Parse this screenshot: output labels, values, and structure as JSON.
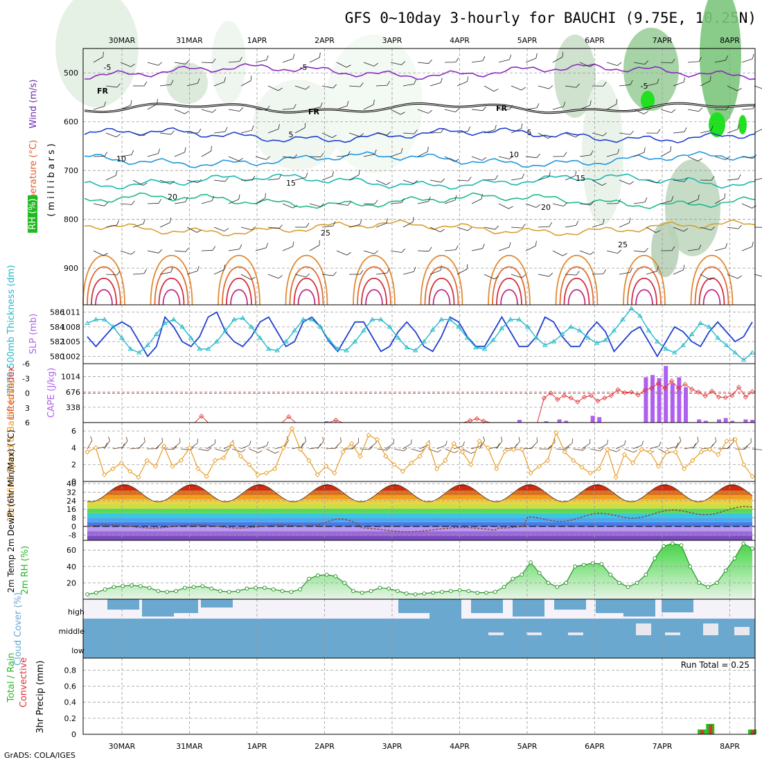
{
  "title": "GFS 0~10day 3-hourly for BAUCHI (9.75E, 10.25N)",
  "footer": "GrADS: COLA/IGES",
  "run_total": "Run Total = 0.25",
  "dates": [
    "30MAR",
    "31MAR",
    "1APR",
    "2APR",
    "3APR",
    "4APR",
    "5APR",
    "6APR",
    "7APR",
    "8APR"
  ],
  "colors": {
    "grid": "#9a9a9a",
    "temp": "#e05a2a",
    "rh": "#22c022",
    "wind": "#6a2ab0",
    "slp": "#1f3fd0",
    "thick": "#22b8c8",
    "cape": "#b060f0",
    "li": "#e03030",
    "wind10": "#e89a20",
    "cloud": "#6aa8d0",
    "precip_total": "#22c022",
    "precip_conv": "#e03030"
  },
  "chart_data": [
    {
      "type": "area",
      "panel": "upper-air",
      "labels": {
        "wind": "Wind (m/s)",
        "temp": "Temperature (°C)",
        "rh": "RH (%)",
        "axis": "(millibars)"
      },
      "ylim": [
        975,
        450
      ],
      "yticks": [
        500,
        600,
        700,
        800,
        900
      ],
      "freezing_label": "FR",
      "contour_labels": [
        "-5",
        "5",
        "10",
        "15",
        "20",
        "25"
      ],
      "temp_levels": [
        {
          "value": -5,
          "p": 497,
          "color": "#8a2ac0"
        },
        {
          "value": 5,
          "p": 628,
          "color": "#2040d0"
        },
        {
          "value": 10,
          "p": 678,
          "color": "#1e98e0"
        },
        {
          "value": 15,
          "p": 722,
          "color": "#18b8b0"
        },
        {
          "value": 20,
          "p": 762,
          "color": "#20b890"
        },
        {
          "value": 25,
          "p": 818,
          "color": "#d8a030"
        }
      ],
      "freezing_p": 572
    },
    {
      "type": "line",
      "panel": "slp-thickness",
      "labels": {
        "thick": "1000-500mb Thickness (dm)",
        "slp": "SLP (mb)"
      },
      "y_left": {
        "ticks": [
          580,
          582,
          584,
          586
        ],
        "range": [
          579,
          587
        ]
      },
      "y_right": {
        "ticks": [
          1002,
          1005,
          1008,
          1011
        ],
        "range": [
          1000.5,
          1012.5
        ]
      },
      "series": [
        {
          "name": "SLP",
          "values": [
            1006,
            1004,
            1006,
            1008,
            1009,
            1008,
            1005,
            1002,
            1004,
            1010,
            1008,
            1005,
            1004,
            1006,
            1010,
            1011,
            1007,
            1005,
            1004,
            1006,
            1009,
            1010,
            1007,
            1004,
            1005,
            1009,
            1010,
            1008,
            1005,
            1003,
            1006,
            1009,
            1009,
            1006,
            1003,
            1004,
            1007,
            1009,
            1007,
            1004,
            1003,
            1006,
            1010,
            1009,
            1006,
            1004,
            1004,
            1007,
            1010,
            1007,
            1004,
            1004,
            1006,
            1010,
            1009,
            1006,
            1004,
            1004,
            1007,
            1009,
            1007,
            1003,
            1005,
            1007,
            1008,
            1005,
            1002,
            1005,
            1008,
            1007,
            1005,
            1004,
            1007,
            1009,
            1007,
            1005,
            1006,
            1009
          ]
        },
        {
          "name": "Thickness",
          "values": [
            584.5,
            585.0,
            585.0,
            584.0,
            582.5,
            581.0,
            580.5,
            581.5,
            583.0,
            584.5,
            585.0,
            584.0,
            582.5,
            581.0,
            581.0,
            582.0,
            583.5,
            585.0,
            585.2,
            584.0,
            582.5,
            581.0,
            580.8,
            582.0,
            583.5,
            585.0,
            585.0,
            584.0,
            582.2,
            581.0,
            580.8,
            582.0,
            583.5,
            585.0,
            585.0,
            584.0,
            582.5,
            581.2,
            580.8,
            582.0,
            583.6,
            585.0,
            585.0,
            584.0,
            582.5,
            581.2,
            581.0,
            582.2,
            583.8,
            585.0,
            585.0,
            584.0,
            582.5,
            581.5,
            582.0,
            583.0,
            584.0,
            583.5,
            582.5,
            581.8,
            582.2,
            583.5,
            585.0,
            586.5,
            585.5,
            583.5,
            582.0,
            581.0,
            580.5,
            581.5,
            583.0,
            584.5,
            584.0,
            582.5,
            581.5,
            580.5,
            579.5,
            580.5
          ]
        }
      ]
    },
    {
      "type": "bar",
      "panel": "cape-li",
      "labels": {
        "li": "Lifted Index",
        "cape": "CAPE (J/kg)"
      },
      "y_left_ticks": [
        "-6",
        "-3",
        "0",
        "3",
        "6"
      ],
      "y_right_ticks": [
        338,
        676,
        1014
      ],
      "series": [
        {
          "name": "CAPE",
          "values": [
            0,
            0,
            0,
            0,
            0,
            0,
            0,
            0,
            0,
            0,
            0,
            0,
            0,
            0,
            0,
            0,
            0,
            0,
            0,
            0,
            0,
            0,
            0,
            0,
            0,
            0,
            0,
            0,
            0,
            0,
            0,
            0,
            0,
            0,
            0,
            0,
            30,
            0,
            0,
            0,
            0,
            0,
            0,
            0,
            0,
            0,
            0,
            0,
            0,
            0,
            0,
            0,
            0,
            0,
            0,
            0,
            0,
            0,
            0,
            0,
            0,
            0,
            0,
            0,
            0,
            60,
            0,
            0,
            0,
            30,
            0,
            70,
            40,
            0,
            0,
            0,
            150,
            120,
            0,
            0,
            0,
            0,
            0,
            0,
            1000,
            1050,
            980,
            1250,
            870,
            1000,
            780,
            0,
            70,
            40,
            0,
            70,
            100,
            40,
            0,
            70,
            60
          ]
        },
        {
          "name": "LI",
          "values": [
            6,
            6,
            6,
            6,
            6,
            6,
            6,
            6,
            6,
            6,
            6,
            6,
            6,
            6,
            6,
            6,
            6,
            4.7,
            6,
            6,
            6,
            6,
            6,
            6,
            6,
            6,
            6,
            6,
            6,
            6,
            4.8,
            6,
            6,
            6,
            6,
            6,
            6,
            5.5,
            6,
            6,
            6,
            6,
            6,
            6,
            6,
            6,
            6,
            6,
            6,
            6,
            6,
            6,
            6,
            6,
            6,
            6,
            6,
            5.6,
            5.2,
            5.7,
            6,
            6,
            6,
            6,
            6,
            6,
            6,
            6,
            1,
            0,
            1.3,
            0.5,
            1,
            1.8,
            0.8,
            0.5,
            1.6,
            1,
            0.5,
            -0.7,
            -0.1,
            -0.2,
            0.4,
            -0.6,
            -1,
            -2,
            -1,
            -2.5,
            -1,
            -1.8,
            -0.8,
            -0.2,
            0.6,
            -0.4,
            0.8,
            0.9,
            0.5,
            -1.2,
            0.8,
            -0.3
          ]
        }
      ]
    },
    {
      "type": "line",
      "panel": "wind10m",
      "labels": {
        "wind10": "10m Wind Speed & Barbs (m/s)"
      },
      "yticks": [
        0,
        2,
        4,
        6
      ],
      "ylim": [
        0,
        7
      ],
      "series": [
        {
          "name": "10m Wind Speed",
          "values": [
            3.5,
            4,
            0.8,
            1.5,
            2.2,
            1.2,
            0.5,
            2.5,
            1.8,
            4.2,
            1.8,
            2.5,
            4,
            1.5,
            0.6,
            2.5,
            2.8,
            4.5,
            3,
            2,
            0.8,
            1,
            1.5,
            4,
            6.3,
            3.8,
            2.5,
            0.8,
            1.8,
            1,
            3.5,
            4.5,
            3,
            5.5,
            5,
            3,
            2,
            1.2,
            2.2,
            3,
            4.5,
            1.5,
            2.5,
            4.5,
            3.5,
            2,
            4.8,
            4,
            1.5,
            3.6,
            3.8,
            3.8,
            1,
            1.8,
            2.5,
            5.8,
            3.5,
            2.5,
            1.7,
            1,
            1.5,
            3.8,
            0.5,
            3.2,
            2.2,
            3.8,
            3.5,
            1.8,
            3.5,
            3.5,
            1.5,
            2.5,
            3.5,
            3.8,
            3.2,
            4.8,
            5,
            2,
            0.6
          ]
        }
      ]
    },
    {
      "type": "area",
      "panel": "temp2m",
      "labels": {
        "temp2m": "2m Temp 2m DewPt (6hr Min/Max) (°C)"
      },
      "yticks": [
        -8,
        0,
        8,
        16,
        24,
        32,
        40
      ],
      "ylim": [
        -13,
        42
      ],
      "color_bands": [
        "#7a4ac0",
        "#9a6ad8",
        "#b898f0",
        "#4a7ae8",
        "#4aa8f0",
        "#3ac8e0",
        "#5ad85a",
        "#c8e040",
        "#f0d040",
        "#f0a020",
        "#e06a10",
        "#d02a10",
        "#a00a10"
      ]
    },
    {
      "type": "area",
      "panel": "rh2m",
      "labels": {
        "rh2m": "2m RH (%)"
      },
      "yticks": [
        20,
        40,
        60
      ],
      "ylim": [
        0,
        72
      ],
      "series": [
        {
          "name": "2m RH",
          "values": [
            6,
            8,
            12,
            15,
            16,
            17,
            16,
            14,
            10,
            9,
            10,
            14,
            15,
            16,
            13,
            10,
            9,
            10,
            13,
            14,
            14,
            12,
            10,
            9,
            12,
            25,
            29,
            30,
            28,
            20,
            10,
            8,
            10,
            14,
            13,
            10,
            7,
            6,
            7,
            8,
            9,
            10,
            11,
            10,
            8,
            8,
            9,
            15,
            25,
            30,
            45,
            32,
            20,
            15,
            20,
            40,
            42,
            44,
            43,
            30,
            20,
            15,
            20,
            30,
            50,
            65,
            68,
            66,
            40,
            20,
            15,
            20,
            35,
            50,
            68,
            62
          ]
        }
      ]
    },
    {
      "type": "bar",
      "panel": "cloud-cover",
      "labels": {
        "cloud": "Cloud Cover (%)",
        "levels": [
          "high",
          "middle",
          "low"
        ]
      }
    },
    {
      "type": "bar",
      "panel": "precip",
      "labels": {
        "precip": "3hr Precip (mm)",
        "total_rain": "Total / Rain",
        "convective": "Convective"
      },
      "yticks": [
        0,
        0.2,
        0.4,
        0.6,
        0.8
      ],
      "ylim": [
        0,
        0.95
      ],
      "series": [
        {
          "name": "Total",
          "values": [
            0.06,
            0.13,
            0.06
          ],
          "index": [
            73,
            74,
            79
          ]
        },
        {
          "name": "Convective",
          "values": [
            0.05,
            0.12,
            0.05
          ],
          "index": [
            73,
            74,
            79
          ]
        }
      ]
    }
  ]
}
